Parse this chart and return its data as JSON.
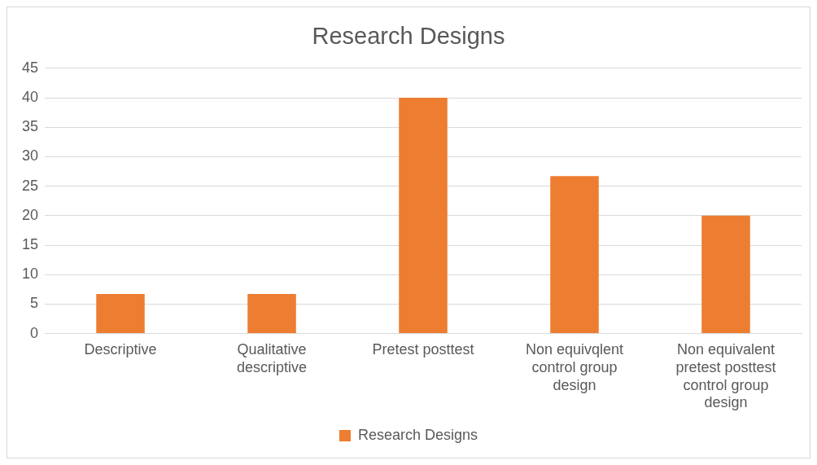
{
  "chart_data": {
    "type": "bar",
    "title": "Research Designs",
    "categories": [
      "Descriptive",
      "Qualitative descriptive",
      "Pretest posttest",
      "Non equivqlent control group design",
      "Non equivalent pretest posttest control group design"
    ],
    "series": [
      {
        "name": "Research Designs",
        "color": "#ed7d31",
        "values": [
          6.7,
          6.7,
          40,
          26.7,
          20
        ]
      }
    ],
    "ylim": [
      0,
      45
    ],
    "yticks": [
      0,
      5,
      10,
      15,
      20,
      25,
      30,
      35,
      40,
      45
    ],
    "grid": "y",
    "legend": "bottom"
  }
}
